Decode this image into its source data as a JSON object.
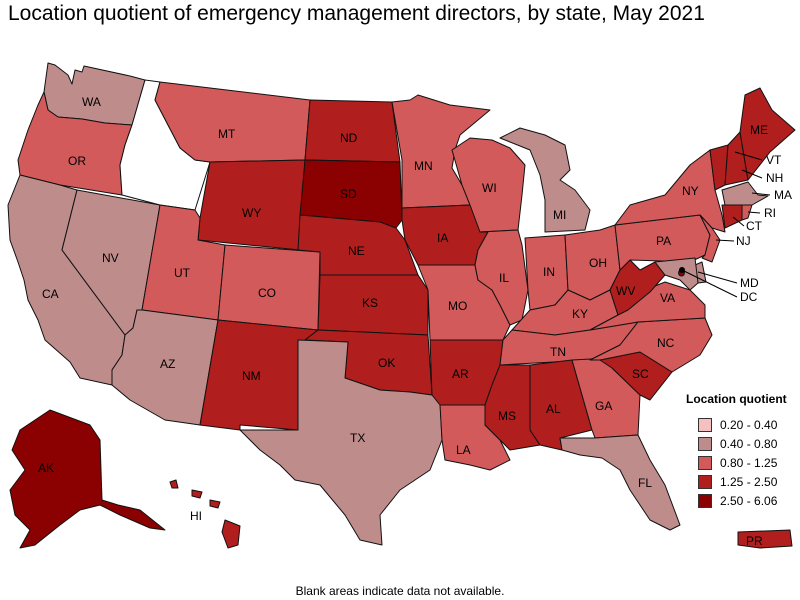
{
  "title": "Location quotient of emergency management directors, by state, May 2021",
  "footnote": "Blank areas indicate data not available.",
  "legend": {
    "title": "Location quotient",
    "items": [
      {
        "label": "0.20 - 0.40",
        "color": "#f4c0c0"
      },
      {
        "label": "0.40 - 0.80",
        "color": "#bf8c8c"
      },
      {
        "label": "0.80 - 1.25",
        "color": "#d25a5a"
      },
      {
        "label": "1.25 - 2.50",
        "color": "#b01e1e"
      },
      {
        "label": "2.50 - 6.06",
        "color": "#8b0000"
      }
    ]
  },
  "colors": {
    "c0": "#f4c0c0",
    "c1": "#bf8c8c",
    "c2": "#d25a5a",
    "c3": "#b01e1e",
    "c4": "#8b0000",
    "no_data": "#ffffff"
  },
  "states": {
    "WA": "0.40 - 0.80",
    "OR": "0.80 - 1.25",
    "CA": "0.40 - 0.80",
    "NV": "0.40 - 0.80",
    "ID": "",
    "MT": "0.80 - 1.25",
    "WY": "1.25 - 2.50",
    "UT": "0.80 - 1.25",
    "AZ": "0.40 - 0.80",
    "CO": "0.80 - 1.25",
    "NM": "1.25 - 2.50",
    "ND": "1.25 - 2.50",
    "SD": "2.50 - 6.06",
    "NE": "1.25 - 2.50",
    "KS": "1.25 - 2.50",
    "OK": "1.25 - 2.50",
    "TX": "0.40 - 0.80",
    "MN": "0.80 - 1.25",
    "IA": "1.25 - 2.50",
    "MO": "0.80 - 1.25",
    "AR": "1.25 - 2.50",
    "LA": "0.80 - 1.25",
    "WI": "0.80 - 1.25",
    "IL": "0.80 - 1.25",
    "MI": "0.40 - 0.80",
    "IN": "0.80 - 1.25",
    "OH": "0.80 - 1.25",
    "KY": "0.80 - 1.25",
    "TN": "0.80 - 1.25",
    "MS": "1.25 - 2.50",
    "AL": "1.25 - 2.50",
    "GA": "0.80 - 1.25",
    "FL": "0.40 - 0.80",
    "SC": "1.25 - 2.50",
    "NC": "0.80 - 1.25",
    "VA": "0.80 - 1.25",
    "WV": "1.25 - 2.50",
    "PA": "0.80 - 1.25",
    "NY": "0.80 - 1.25",
    "ME": "1.25 - 2.50",
    "VT": "1.25 - 2.50",
    "NH": "1.25 - 2.50",
    "MA": "0.40 - 0.80",
    "RI": "0.80 - 1.25",
    "CT": "1.25 - 2.50",
    "NJ": "0.80 - 1.25",
    "DE": "0.40 - 0.80",
    "MD": "0.40 - 0.80",
    "DC": "2.50 - 6.06",
    "AK": "2.50 - 6.06",
    "HI": "1.25 - 2.50",
    "PR": "1.25 - 2.50"
  },
  "labels": {
    "WA": "WA",
    "OR": "OR",
    "CA": "CA",
    "NV": "NV",
    "MT": "MT",
    "WY": "WY",
    "UT": "UT",
    "AZ": "AZ",
    "CO": "CO",
    "NM": "NM",
    "ND": "ND",
    "SD": "SD",
    "NE": "NE",
    "KS": "KS",
    "OK": "OK",
    "TX": "TX",
    "MN": "MN",
    "IA": "IA",
    "MO": "MO",
    "AR": "AR",
    "LA": "LA",
    "WI": "WI",
    "IL": "IL",
    "MI": "MI",
    "IN": "IN",
    "OH": "OH",
    "KY": "KY",
    "TN": "TN",
    "MS": "MS",
    "AL": "AL",
    "GA": "GA",
    "FL": "FL",
    "SC": "SC",
    "NC": "NC",
    "VA": "VA",
    "WV": "WV",
    "PA": "PA",
    "NY": "NY",
    "ME": "ME",
    "VT": "VT",
    "NH": "NH",
    "MA": "MA",
    "RI": "RI",
    "CT": "CT",
    "NJ": "NJ",
    "MD": "MD",
    "DC": "DC",
    "AK": "AK",
    "HI": "HI",
    "PR": "PR"
  }
}
